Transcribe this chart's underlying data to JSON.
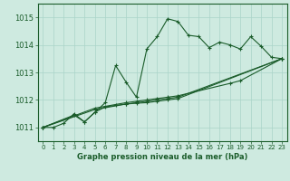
{
  "background_color": "#ceeae0",
  "grid_color": "#aad4c8",
  "line_color": "#1a5c2a",
  "ylim": [
    1010.5,
    1015.5
  ],
  "xlim": [
    -0.5,
    23.5
  ],
  "yticks": [
    1011,
    1012,
    1013,
    1014,
    1015
  ],
  "xticks": [
    0,
    1,
    2,
    3,
    4,
    5,
    6,
    7,
    8,
    9,
    10,
    11,
    12,
    13,
    14,
    15,
    16,
    17,
    18,
    19,
    20,
    21,
    22,
    23
  ],
  "xlabel": "Graphe pression niveau de la mer (hPa)",
  "series": [
    {
      "x": [
        0,
        1,
        2,
        3,
        4,
        5,
        6,
        7,
        8,
        9,
        10,
        11,
        12,
        13,
        14,
        15,
        16,
        17,
        18,
        19,
        20,
        21,
        22,
        23
      ],
      "y": [
        1011.0,
        1011.0,
        1011.15,
        1011.5,
        1011.2,
        1011.55,
        1011.9,
        1013.25,
        1012.65,
        1012.1,
        1013.85,
        1014.3,
        1014.95,
        1014.85,
        1014.35,
        1014.3,
        1013.9,
        1014.1,
        1014.0,
        1013.85,
        1014.3,
        1013.95,
        1013.55,
        1013.5
      ]
    },
    {
      "x": [
        0,
        5,
        8,
        9,
        10,
        11,
        12,
        13,
        18,
        19,
        23
      ],
      "y": [
        1011.0,
        1011.7,
        1011.9,
        1011.95,
        1012.0,
        1012.05,
        1012.1,
        1012.15,
        1012.6,
        1012.7,
        1013.5
      ]
    },
    {
      "x": [
        0,
        5,
        8,
        9,
        10,
        11,
        12,
        13,
        23
      ],
      "y": [
        1011.0,
        1011.65,
        1011.85,
        1011.9,
        1011.95,
        1012.0,
        1012.05,
        1012.1,
        1013.5
      ]
    },
    {
      "x": [
        0,
        3,
        4,
        5,
        6,
        7,
        8,
        9,
        10,
        11,
        12,
        13,
        23
      ],
      "y": [
        1011.0,
        1011.45,
        1011.2,
        1011.55,
        1011.75,
        1011.8,
        1011.85,
        1011.88,
        1011.9,
        1011.95,
        1012.0,
        1012.05,
        1013.5
      ]
    }
  ]
}
